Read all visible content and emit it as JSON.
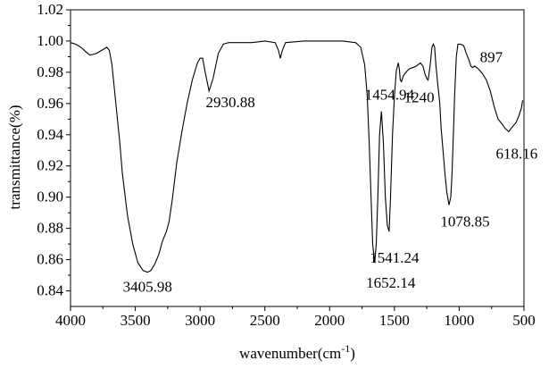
{
  "chart_data": {
    "type": "line",
    "title": "",
    "xlabel": "wavenumber(cm",
    "xlabel_sup": "-1",
    "xlabel_suffix": ")",
    "ylabel": "transmittance(%)",
    "xlim": [
      4000,
      500
    ],
    "ylim": [
      0.83,
      1.02
    ],
    "x_reversed": true,
    "grid": false,
    "legend": "none",
    "line_color": "#000000",
    "x_ticks": [
      4000,
      3500,
      3000,
      2500,
      2000,
      1500,
      1000,
      500
    ],
    "x_tick_labels": [
      "4000",
      "3500",
      "3000",
      "2500",
      "2000",
      "1500",
      "1000",
      "500"
    ],
    "y_ticks": [
      0.84,
      0.86,
      0.88,
      0.9,
      0.92,
      0.94,
      0.96,
      0.98,
      1.0,
      1.02
    ],
    "y_tick_labels": [
      "0.84",
      "0.86",
      "0.88",
      "0.90",
      "0.92",
      "0.94",
      "0.96",
      "0.98",
      "1.00",
      "1.02"
    ],
    "series": [
      {
        "points": [
          [
            4000,
            0.999
          ],
          [
            3960,
            0.998
          ],
          [
            3920,
            0.996
          ],
          [
            3880,
            0.993
          ],
          [
            3850,
            0.991
          ],
          [
            3800,
            0.992
          ],
          [
            3760,
            0.994
          ],
          [
            3720,
            0.996
          ],
          [
            3700,
            0.994
          ],
          [
            3680,
            0.985
          ],
          [
            3650,
            0.96
          ],
          [
            3620,
            0.935
          ],
          [
            3600,
            0.915
          ],
          [
            3560,
            0.888
          ],
          [
            3520,
            0.87
          ],
          [
            3480,
            0.858
          ],
          [
            3440,
            0.853
          ],
          [
            3406,
            0.852
          ],
          [
            3380,
            0.853
          ],
          [
            3350,
            0.857
          ],
          [
            3320,
            0.863
          ],
          [
            3290,
            0.872
          ],
          [
            3260,
            0.878
          ],
          [
            3240,
            0.884
          ],
          [
            3215,
            0.898
          ],
          [
            3180,
            0.922
          ],
          [
            3140,
            0.942
          ],
          [
            3100,
            0.96
          ],
          [
            3060,
            0.975
          ],
          [
            3020,
            0.986
          ],
          [
            3000,
            0.989
          ],
          [
            2980,
            0.989
          ],
          [
            2960,
            0.98
          ],
          [
            2931,
            0.968
          ],
          [
            2900,
            0.976
          ],
          [
            2860,
            0.992
          ],
          [
            2820,
            0.998
          ],
          [
            2780,
            0.999
          ],
          [
            2700,
            0.999
          ],
          [
            2600,
            0.999
          ],
          [
            2500,
            1.0
          ],
          [
            2420,
            0.999
          ],
          [
            2395,
            0.994
          ],
          [
            2380,
            0.989
          ],
          [
            2365,
            0.994
          ],
          [
            2340,
            0.999
          ],
          [
            2200,
            1.0
          ],
          [
            2100,
            1.0
          ],
          [
            2000,
            1.0
          ],
          [
            1900,
            1.0
          ],
          [
            1800,
            0.999
          ],
          [
            1760,
            0.996
          ],
          [
            1730,
            0.985
          ],
          [
            1710,
            0.965
          ],
          [
            1695,
            0.935
          ],
          [
            1680,
            0.9
          ],
          [
            1668,
            0.87
          ],
          [
            1652,
            0.858
          ],
          [
            1640,
            0.87
          ],
          [
            1628,
            0.9
          ],
          [
            1615,
            0.94
          ],
          [
            1600,
            0.955
          ],
          [
            1585,
            0.935
          ],
          [
            1570,
            0.9
          ],
          [
            1555,
            0.882
          ],
          [
            1541,
            0.878
          ],
          [
            1530,
            0.9
          ],
          [
            1515,
            0.94
          ],
          [
            1500,
            0.965
          ],
          [
            1485,
            0.981
          ],
          [
            1470,
            0.986
          ],
          [
            1462,
            0.982
          ],
          [
            1455,
            0.975
          ],
          [
            1445,
            0.974
          ],
          [
            1430,
            0.978
          ],
          [
            1410,
            0.98
          ],
          [
            1390,
            0.982
          ],
          [
            1360,
            0.983
          ],
          [
            1330,
            0.984
          ],
          [
            1300,
            0.986
          ],
          [
            1280,
            0.984
          ],
          [
            1265,
            0.979
          ],
          [
            1250,
            0.976
          ],
          [
            1240,
            0.975
          ],
          [
            1225,
            0.984
          ],
          [
            1210,
            0.996
          ],
          [
            1200,
            0.998
          ],
          [
            1190,
            0.996
          ],
          [
            1180,
            0.985
          ],
          [
            1165,
            0.972
          ],
          [
            1150,
            0.96
          ],
          [
            1140,
            0.945
          ],
          [
            1125,
            0.93
          ],
          [
            1110,
            0.915
          ],
          [
            1095,
            0.903
          ],
          [
            1079,
            0.895
          ],
          [
            1065,
            0.9
          ],
          [
            1055,
            0.915
          ],
          [
            1045,
            0.94
          ],
          [
            1035,
            0.965
          ],
          [
            1022,
            0.99
          ],
          [
            1010,
            0.998
          ],
          [
            990,
            0.998
          ],
          [
            965,
            0.997
          ],
          [
            945,
            0.992
          ],
          [
            925,
            0.988
          ],
          [
            910,
            0.984
          ],
          [
            897,
            0.983
          ],
          [
            880,
            0.984
          ],
          [
            850,
            0.982
          ],
          [
            820,
            0.979
          ],
          [
            790,
            0.975
          ],
          [
            760,
            0.968
          ],
          [
            730,
            0.958
          ],
          [
            700,
            0.95
          ],
          [
            670,
            0.947
          ],
          [
            645,
            0.944
          ],
          [
            618,
            0.942
          ],
          [
            600,
            0.944
          ],
          [
            580,
            0.946
          ],
          [
            560,
            0.948
          ],
          [
            540,
            0.952
          ],
          [
            520,
            0.957
          ],
          [
            510,
            0.962
          ]
        ]
      }
    ],
    "annotations": [
      {
        "text": "3405.98",
        "x": 3406,
        "y": 0.852
      },
      {
        "text": "2930.88",
        "x": 2931,
        "y": 0.968
      },
      {
        "text": "1652.14",
        "x": 1652,
        "y": 0.858
      },
      {
        "text": "1541.24",
        "x": 1541,
        "y": 0.878
      },
      {
        "text": "1454.94",
        "x": 1455,
        "y": 0.975
      },
      {
        "text": "1240",
        "x": 1240,
        "y": 0.975
      },
      {
        "text": "1078.85",
        "x": 1079,
        "y": 0.895
      },
      {
        "text": "897",
        "x": 897,
        "y": 0.983
      },
      {
        "text": "618.16",
        "x": 618,
        "y": 0.942
      }
    ]
  }
}
